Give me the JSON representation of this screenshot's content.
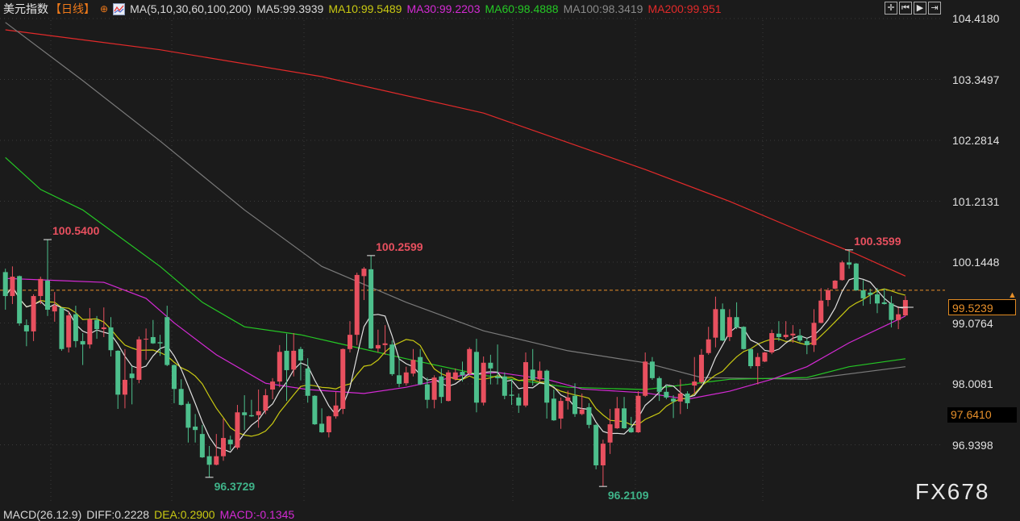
{
  "header": {
    "title": "美元指数",
    "period": "【日线】",
    "ma_params": "MA(5,10,30,60,100,200)",
    "ma5": "MA5:99.3939",
    "ma10": "MA10:99.5489",
    "ma30": "MA30:99.2203",
    "ma60": "MA60:98.4888",
    "ma100": "MA100:98.3419",
    "ma200": "MA200:99.951"
  },
  "toolbar": {
    "icons": [
      "crosshair-icon",
      "step-back-icon",
      "play-icon",
      "exit-icon"
    ]
  },
  "axis": {
    "ticks": [
      "104.4180",
      "103.3497",
      "102.2814",
      "101.2131",
      "100.1448",
      "99.0764",
      "98.0081",
      "96.9398"
    ]
  },
  "last_price": "99.5239",
  "marker_price": "97.6410",
  "watermark": "FX678",
  "macd": {
    "params": "MACD(26.12.9)",
    "diff": "DIFF:0.2228",
    "dea": "DEA:0.2900",
    "macd": "MACD:-0.1345"
  },
  "colors": {
    "up": "#e8505f",
    "down": "#4dbf8c",
    "ma5": "#e0e0e0",
    "ma10": "#c9c912",
    "ma30": "#d42ad4",
    "ma60": "#25c825",
    "ma100": "#7a7a7a",
    "ma200": "#e22a2a",
    "last_line": "#e8902a"
  },
  "chart_data": {
    "type": "candlestick",
    "ylim": [
      96.0,
      104.55
    ],
    "grid": true,
    "ohlc": [
      [
        99.97,
        100.03,
        99.31,
        99.55
      ],
      [
        99.55,
        100.07,
        99.41,
        99.89
      ],
      [
        99.9,
        99.91,
        99.03,
        99.07
      ],
      [
        99.04,
        99.14,
        98.67,
        98.93
      ],
      [
        98.93,
        99.58,
        98.76,
        99.55
      ],
      [
        99.55,
        99.89,
        99.41,
        99.85
      ],
      [
        99.82,
        100.54,
        99.2,
        99.31
      ],
      [
        99.28,
        99.62,
        99.1,
        99.38
      ],
      [
        99.34,
        99.35,
        98.59,
        98.62
      ],
      [
        98.65,
        99.28,
        98.56,
        99.21
      ],
      [
        99.23,
        99.38,
        98.65,
        98.76
      ],
      [
        98.76,
        98.9,
        98.34,
        98.7
      ],
      [
        98.7,
        99.34,
        98.63,
        99.14
      ],
      [
        99.13,
        99.2,
        98.8,
        98.97
      ],
      [
        98.97,
        99.35,
        98.83,
        99.0
      ],
      [
        99.0,
        99.18,
        98.49,
        98.6
      ],
      [
        98.59,
        98.6,
        97.57,
        97.82
      ],
      [
        97.82,
        98.62,
        97.58,
        98.08
      ],
      [
        98.19,
        98.32,
        97.65,
        98.11
      ],
      [
        98.08,
        98.84,
        98.02,
        98.79
      ],
      [
        98.79,
        98.98,
        98.43,
        98.8
      ],
      [
        98.83,
        99.13,
        98.71,
        98.72
      ],
      [
        98.74,
        98.87,
        98.5,
        98.72
      ],
      [
        99.18,
        99.38,
        98.32,
        98.34
      ],
      [
        98.34,
        98.35,
        97.67,
        97.92
      ],
      [
        97.92,
        98.09,
        97.63,
        97.64
      ],
      [
        97.66,
        97.7,
        96.98,
        97.24
      ],
      [
        97.26,
        97.48,
        96.98,
        97.2
      ],
      [
        97.13,
        97.29,
        96.71,
        96.72
      ],
      [
        96.74,
        96.92,
        96.37,
        96.59
      ],
      [
        96.59,
        97.13,
        96.58,
        96.74
      ],
      [
        96.74,
        97.4,
        96.66,
        97.06
      ],
      [
        97.03,
        97.1,
        96.85,
        96.95
      ],
      [
        96.89,
        97.64,
        96.86,
        97.51
      ],
      [
        97.51,
        97.81,
        97.2,
        97.46
      ],
      [
        97.46,
        97.73,
        97.43,
        97.44
      ],
      [
        97.46,
        97.91,
        97.24,
        97.53
      ],
      [
        97.54,
        97.92,
        97.48,
        97.81
      ],
      [
        97.91,
        98.11,
        97.74,
        98.05
      ],
      [
        98.05,
        98.69,
        97.95,
        98.57
      ],
      [
        98.59,
        98.89,
        97.71,
        98.25
      ],
      [
        98.26,
        98.9,
        98.14,
        98.59
      ],
      [
        98.62,
        98.66,
        98.07,
        98.42
      ],
      [
        98.28,
        98.46,
        97.68,
        97.8
      ],
      [
        97.8,
        97.81,
        97.29,
        97.3
      ],
      [
        97.31,
        97.58,
        97.15,
        97.16
      ],
      [
        97.16,
        97.45,
        97.07,
        97.44
      ],
      [
        97.44,
        97.87,
        97.4,
        97.63
      ],
      [
        97.57,
        98.63,
        97.48,
        98.62
      ],
      [
        98.62,
        99.11,
        98.56,
        98.87
      ],
      [
        98.87,
        99.96,
        98.69,
        99.92
      ],
      [
        99.9,
        100.06,
        99.48,
        100.03
      ],
      [
        100.02,
        100.26,
        98.62,
        98.63
      ],
      [
        98.63,
        98.96,
        98.56,
        98.69
      ],
      [
        98.69,
        99.04,
        98.52,
        98.72
      ],
      [
        98.7,
        98.77,
        98.15,
        98.18
      ],
      [
        98.16,
        98.48,
        97.95,
        98.01
      ],
      [
        98.02,
        98.31,
        97.98,
        98.21
      ],
      [
        98.19,
        98.62,
        98.14,
        98.43
      ],
      [
        98.48,
        98.62,
        97.99,
        98.0
      ],
      [
        98.0,
        98.12,
        97.58,
        97.73
      ],
      [
        97.73,
        98.16,
        97.58,
        98.12
      ],
      [
        98.14,
        98.28,
        97.67,
        97.78
      ],
      [
        97.71,
        98.25,
        97.7,
        98.21
      ],
      [
        98.09,
        98.28,
        98.07,
        98.21
      ],
      [
        98.22,
        98.4,
        98.05,
        98.16
      ],
      [
        98.19,
        98.65,
        98.18,
        98.62
      ],
      [
        98.57,
        98.8,
        97.51,
        97.68
      ],
      [
        97.68,
        98.49,
        97.63,
        98.38
      ],
      [
        98.38,
        98.52,
        98.0,
        98.28
      ],
      [
        98.14,
        98.7,
        98.0,
        98.11
      ],
      [
        98.14,
        98.21,
        97.74,
        97.8
      ],
      [
        97.82,
        98.09,
        97.64,
        97.8
      ],
      [
        97.77,
        97.84,
        97.5,
        97.63
      ],
      [
        97.63,
        98.56,
        97.6,
        98.39
      ],
      [
        98.26,
        98.62,
        97.98,
        98.08
      ],
      [
        98.09,
        98.4,
        98.05,
        98.24
      ],
      [
        98.24,
        98.26,
        97.4,
        97.68
      ],
      [
        97.75,
        97.91,
        97.36,
        97.37
      ],
      [
        97.4,
        97.77,
        97.22,
        97.71
      ],
      [
        97.71,
        97.89,
        97.56,
        97.77
      ],
      [
        97.8,
        98.02,
        97.43,
        97.48
      ],
      [
        97.48,
        97.84,
        97.46,
        97.56
      ],
      [
        97.6,
        97.67,
        97.23,
        97.29
      ],
      [
        97.29,
        97.3,
        96.51,
        96.58
      ],
      [
        96.58,
        97.03,
        96.21,
        96.96
      ],
      [
        96.98,
        97.57,
        96.78,
        97.3
      ],
      [
        97.23,
        97.78,
        97.22,
        97.58
      ],
      [
        97.58,
        97.78,
        97.22,
        97.23
      ],
      [
        97.24,
        97.43,
        97.15,
        97.16
      ],
      [
        97.16,
        97.88,
        97.15,
        97.8
      ],
      [
        97.8,
        98.56,
        97.78,
        98.4
      ],
      [
        98.4,
        98.48,
        98.08,
        98.11
      ],
      [
        98.11,
        98.14,
        97.71,
        97.87
      ],
      [
        97.87,
        98.0,
        97.74,
        97.77
      ],
      [
        97.75,
        97.81,
        97.41,
        97.7
      ],
      [
        97.7,
        98.09,
        97.48,
        97.84
      ],
      [
        97.84,
        97.88,
        97.57,
        97.67
      ],
      [
        97.98,
        98.48,
        97.84,
        98.05
      ],
      [
        98.04,
        98.62,
        98.01,
        98.52
      ],
      [
        98.55,
        99.01,
        98.52,
        98.79
      ],
      [
        98.82,
        99.54,
        98.65,
        99.32
      ],
      [
        99.32,
        99.42,
        98.76,
        98.77
      ],
      [
        98.83,
        99.32,
        98.76,
        99.18
      ],
      [
        99.18,
        99.44,
        98.97,
        99.0
      ],
      [
        99.01,
        99.02,
        98.61,
        98.62
      ],
      [
        98.62,
        98.63,
        98.28,
        98.32
      ],
      [
        98.32,
        98.55,
        98.0,
        98.48
      ],
      [
        98.4,
        98.57,
        98.39,
        98.56
      ],
      [
        98.56,
        98.96,
        98.53,
        98.9
      ],
      [
        98.89,
        99.11,
        98.76,
        98.83
      ],
      [
        98.83,
        99.11,
        98.8,
        98.87
      ],
      [
        98.86,
        99.04,
        98.73,
        98.89
      ],
      [
        98.86,
        98.97,
        98.74,
        98.77
      ],
      [
        98.76,
        98.81,
        98.53,
        98.69
      ],
      [
        98.69,
        99.32,
        98.57,
        99.08
      ],
      [
        99.08,
        99.69,
        99.07,
        99.47
      ],
      [
        99.48,
        99.69,
        99.37,
        99.65
      ],
      [
        99.68,
        99.83,
        99.67,
        99.82
      ],
      [
        99.83,
        100.17,
        99.82,
        100.14
      ],
      [
        100.14,
        100.36,
        100.03,
        100.1
      ],
      [
        100.12,
        100.13,
        99.64,
        99.65
      ],
      [
        99.65,
        99.83,
        99.38,
        99.51
      ],
      [
        99.61,
        99.68,
        99.41,
        99.57
      ],
      [
        99.58,
        99.69,
        99.25,
        99.42
      ],
      [
        99.44,
        99.68,
        99.4,
        99.41
      ],
      [
        99.42,
        99.55,
        99.0,
        99.13
      ],
      [
        99.13,
        99.37,
        98.97,
        99.23
      ],
      [
        99.21,
        99.55,
        99.2,
        99.48
      ]
    ],
    "moving_averages": {
      "ma30": [
        [
          1,
          99.86
        ],
        [
          9,
          99.82
        ],
        [
          15,
          99.79
        ],
        [
          21,
          99.51
        ],
        [
          25,
          99.08
        ],
        [
          31,
          98.52
        ],
        [
          38,
          98.02
        ],
        [
          44,
          97.91
        ],
        [
          52,
          97.84
        ],
        [
          58,
          97.95
        ],
        [
          66,
          98.16
        ],
        [
          71,
          98.21
        ],
        [
          78,
          98.09
        ],
        [
          83,
          97.92
        ],
        [
          92,
          97.85
        ],
        [
          98,
          97.74
        ],
        [
          104,
          97.88
        ],
        [
          110,
          98.09
        ],
        [
          115,
          98.31
        ],
        [
          121,
          98.73
        ],
        [
          127,
          99.08
        ],
        [
          129,
          99.2
        ]
      ],
      "ma60": [
        [
          1,
          101.98
        ],
        [
          6,
          101.42
        ],
        [
          12,
          101.06
        ],
        [
          23,
          100.07
        ],
        [
          29,
          99.44
        ],
        [
          35,
          99.01
        ],
        [
          43,
          98.87
        ],
        [
          48,
          98.73
        ],
        [
          58,
          98.45
        ],
        [
          69,
          98.16
        ],
        [
          81,
          97.95
        ],
        [
          92,
          97.91
        ],
        [
          104,
          98.09
        ],
        [
          115,
          98.12
        ],
        [
          121,
          98.31
        ],
        [
          129,
          98.45
        ]
      ],
      "ma100": [
        [
          1,
          104.35
        ],
        [
          12,
          103.33
        ],
        [
          23,
          102.27
        ],
        [
          35,
          101.06
        ],
        [
          46,
          100.07
        ],
        [
          58,
          99.44
        ],
        [
          69,
          98.94
        ],
        [
          81,
          98.59
        ],
        [
          92,
          98.38
        ],
        [
          100,
          98.12
        ],
        [
          115,
          98.09
        ],
        [
          129,
          98.31
        ]
      ],
      "ma200": [
        [
          1,
          104.22
        ],
        [
          23,
          103.87
        ],
        [
          46,
          103.4
        ],
        [
          69,
          102.76
        ],
        [
          92,
          101.77
        ],
        [
          104,
          101.21
        ],
        [
          115,
          100.64
        ],
        [
          122,
          100.29
        ],
        [
          129,
          99.9
        ]
      ]
    },
    "extremes": [
      {
        "label": "100.5400",
        "candle": 7,
        "kind": "high"
      },
      {
        "label": "100.2599",
        "candle": 53,
        "kind": "high"
      },
      {
        "label": "100.3599",
        "candle": 121,
        "kind": "high"
      },
      {
        "label": "96.3729",
        "candle": 30,
        "kind": "low"
      },
      {
        "label": "96.2109",
        "candle": 86,
        "kind": "low"
      }
    ]
  }
}
